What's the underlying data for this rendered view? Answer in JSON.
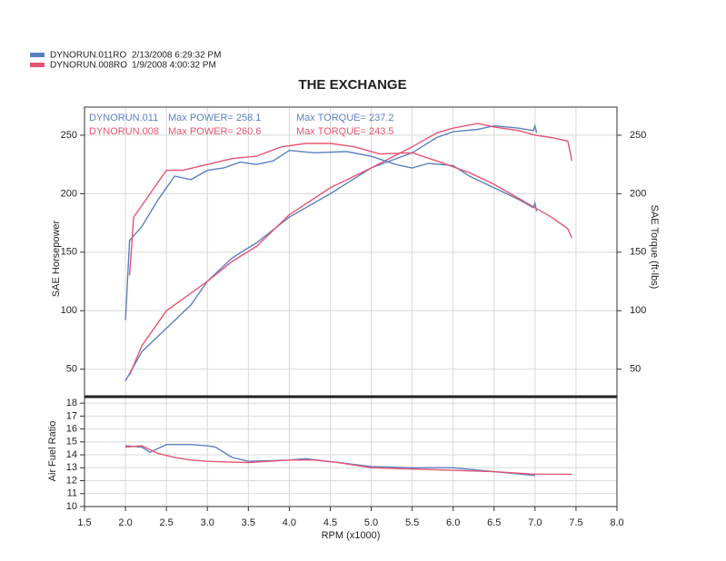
{
  "legend": [
    {
      "name": "DYNORUN.011RO",
      "date": "2/13/2008 6:29:32 PM",
      "color": "#5b7fc2"
    },
    {
      "name": "DYNORUN.008RO",
      "date": "1/9/2008 4:00:32 PM",
      "color": "#e55572"
    }
  ],
  "chart_data": [
    {
      "type": "line",
      "title": "THE EXCHANGE",
      "ylabel": "SAE Horsepower",
      "y2label": "SAE Torque (ft-lbs)",
      "ylim": [
        26.5,
        274
      ],
      "yticks": [
        50,
        100,
        150,
        200,
        250
      ],
      "y2lim": [
        26.5,
        274
      ],
      "y2ticks": [
        50,
        100,
        150,
        200,
        250
      ],
      "grid": true,
      "annotations": [
        {
          "text": "DYNORUN.011",
          "color": "#5b7fc2"
        },
        {
          "text": "Max POWER= 258.1",
          "color": "#5b7fc2"
        },
        {
          "text": "Max TORQUE= 237.2",
          "color": "#5b7fc2"
        },
        {
          "text": "DYNORUN.008",
          "color": "#e55572"
        },
        {
          "text": "Max POWER= 260.6",
          "color": "#e55572"
        },
        {
          "text": "Max TORQUE= 243.5",
          "color": "#e55572"
        }
      ],
      "series": [
        {
          "color": "#5b7fc2",
          "axis": "y",
          "x": [
            2.0,
            2.2,
            2.5,
            2.8,
            3.0,
            3.3,
            3.6,
            4.0,
            4.5,
            5.0,
            5.5,
            5.8,
            6.0,
            6.3,
            6.5,
            6.8,
            6.98,
            7.0,
            7.02
          ],
          "values": [
            40,
            65,
            85,
            105,
            125,
            145,
            158,
            180,
            200,
            222,
            235,
            248,
            253,
            255,
            258,
            256,
            254,
            258,
            252
          ]
        },
        {
          "color": "#e55572",
          "axis": "y",
          "x": [
            2.05,
            2.2,
            2.5,
            2.8,
            3.0,
            3.3,
            3.6,
            4.0,
            4.5,
            5.0,
            5.5,
            5.8,
            6.0,
            6.3,
            6.5,
            6.8,
            7.0,
            7.2,
            7.4,
            7.45
          ],
          "values": [
            45,
            70,
            100,
            115,
            125,
            142,
            155,
            182,
            205,
            222,
            240,
            252,
            256,
            260,
            257,
            254,
            250,
            248,
            245,
            228
          ]
        },
        {
          "color": "#5b7fc2",
          "axis": "y2",
          "x": [
            2.0,
            2.05,
            2.2,
            2.4,
            2.6,
            2.8,
            3.0,
            3.2,
            3.4,
            3.6,
            3.8,
            4.0,
            4.3,
            4.7,
            5.0,
            5.3,
            5.5,
            5.7,
            6.0,
            6.2,
            6.5,
            6.8,
            6.98,
            7.0,
            7.02
          ],
          "values": [
            92,
            160,
            172,
            195,
            215,
            212,
            220,
            222,
            227,
            225,
            228,
            237,
            235,
            236,
            232,
            225,
            222,
            226,
            224,
            215,
            205,
            195,
            188,
            192,
            185
          ]
        },
        {
          "color": "#e55572",
          "axis": "y2",
          "x": [
            2.05,
            2.1,
            2.3,
            2.5,
            2.7,
            3.0,
            3.3,
            3.6,
            3.9,
            4.2,
            4.5,
            4.8,
            5.1,
            5.5,
            5.8,
            6.2,
            6.5,
            6.8,
            7.0,
            7.2,
            7.4,
            7.45
          ],
          "values": [
            130,
            180,
            200,
            220,
            220,
            225,
            230,
            232,
            240,
            243,
            243,
            240,
            234,
            235,
            228,
            218,
            208,
            196,
            188,
            180,
            170,
            162
          ]
        }
      ]
    },
    {
      "type": "line",
      "ylabel": "Air Fuel Ratio",
      "xlabel": "RPM (x1000)",
      "xlim": [
        1.5,
        8.0
      ],
      "xticks": [
        1.5,
        {
          "value": 2,
          "label": "2.0"
        },
        2.5,
        {
          "value": 3,
          "label": "3.0"
        },
        3.5,
        {
          "value": 4,
          "label": "4.0"
        },
        4.5,
        {
          "value": 5,
          "label": "5.0"
        },
        5.5,
        {
          "value": 6,
          "label": "6.0"
        },
        6.5,
        {
          "value": 7,
          "label": "7.0"
        },
        7.5,
        {
          "value": 8,
          "label": "8.0"
        }
      ],
      "ylim": [
        10,
        18.5
      ],
      "yticks": [
        10,
        11,
        12,
        13,
        14,
        15,
        16,
        17,
        18
      ],
      "grid": true,
      "series": [
        {
          "color": "#5b7fc2",
          "x": [
            2.0,
            2.2,
            2.3,
            2.5,
            2.8,
            3.0,
            3.1,
            3.3,
            3.5,
            4.0,
            4.2,
            4.6,
            5.0,
            5.5,
            6.0,
            6.5,
            7.0
          ],
          "values": [
            14.7,
            14.6,
            14.2,
            14.8,
            14.8,
            14.7,
            14.6,
            13.8,
            13.5,
            13.6,
            13.7,
            13.4,
            13.1,
            13.0,
            13.0,
            12.7,
            12.4
          ]
        },
        {
          "color": "#e55572",
          "x": [
            2.0,
            2.2,
            2.4,
            2.6,
            2.8,
            3.0,
            3.5,
            4.0,
            4.3,
            4.6,
            5.0,
            5.5,
            6.0,
            6.5,
            7.0,
            7.45
          ],
          "values": [
            14.6,
            14.7,
            14.1,
            13.8,
            13.6,
            13.5,
            13.4,
            13.6,
            13.6,
            13.4,
            13.0,
            12.9,
            12.8,
            12.7,
            12.5,
            12.5
          ]
        }
      ]
    }
  ]
}
